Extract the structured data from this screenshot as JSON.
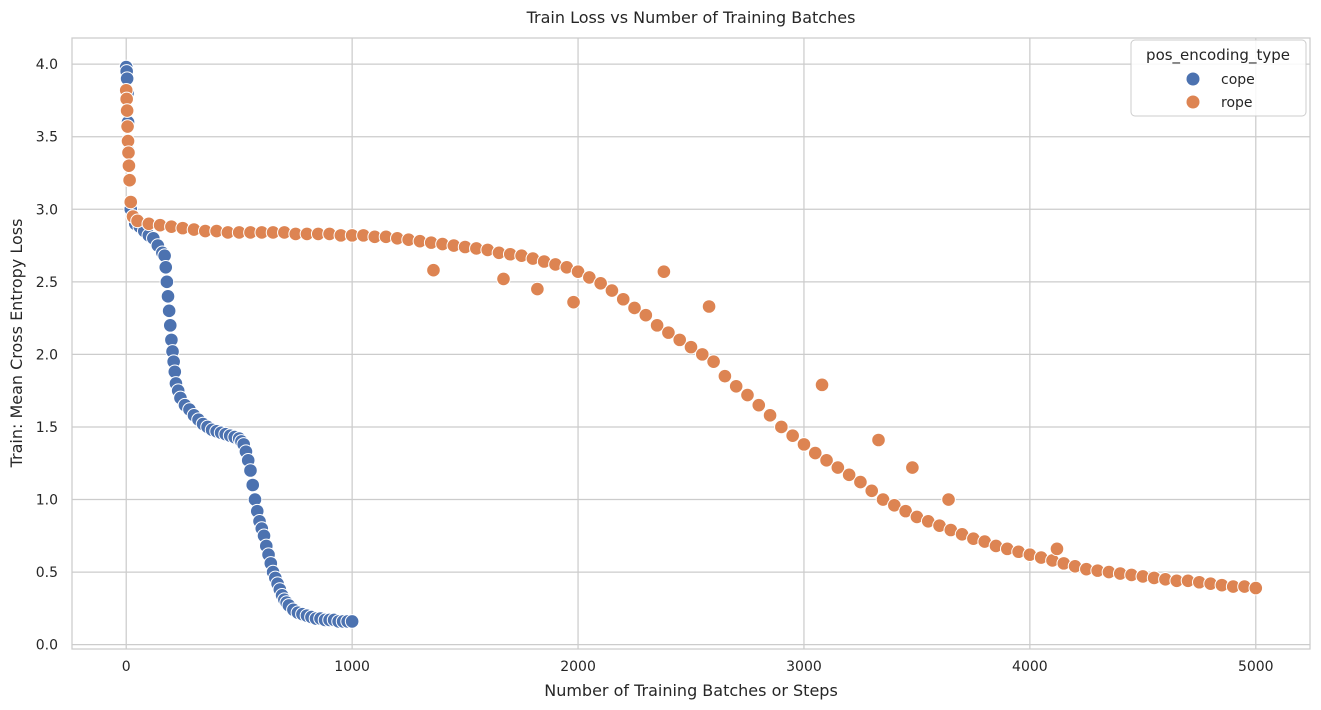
{
  "chart_data": {
    "type": "scatter",
    "title": "Train Loss vs Number of Training Batches",
    "xlabel": "Number of Training Batches or Steps",
    "ylabel": "Train: Mean Cross Entropy Loss",
    "xlim": [
      -240,
      5240
    ],
    "ylim": [
      -0.03,
      4.18
    ],
    "xticks": [
      0,
      1000,
      2000,
      3000,
      4000,
      5000
    ],
    "yticks": [
      0.0,
      0.5,
      1.0,
      1.5,
      2.0,
      2.5,
      3.0,
      3.5,
      4.0
    ],
    "grid": true,
    "style": "whitegrid",
    "legend": {
      "title": "pos_encoding_type",
      "placement": "top-right"
    },
    "series": [
      {
        "name": "cope",
        "color": "#4c72b0",
        "x": [
          0,
          2,
          4,
          6,
          8,
          10,
          15,
          20,
          30,
          40,
          60,
          80,
          100,
          120,
          140,
          160,
          170,
          175,
          180,
          185,
          190,
          195,
          200,
          205,
          210,
          215,
          220,
          230,
          240,
          260,
          280,
          300,
          320,
          340,
          360,
          380,
          400,
          420,
          440,
          460,
          480,
          500,
          510,
          520,
          530,
          540,
          550,
          560,
          570,
          580,
          590,
          600,
          610,
          620,
          630,
          640,
          650,
          660,
          670,
          680,
          690,
          700,
          710,
          720,
          740,
          760,
          780,
          800,
          820,
          840,
          860,
          880,
          900,
          920,
          940,
          960,
          980,
          1000
        ],
        "y": [
          3.98,
          3.95,
          3.9,
          3.8,
          3.6,
          3.4,
          3.2,
          3.0,
          2.95,
          2.9,
          2.88,
          2.85,
          2.82,
          2.8,
          2.75,
          2.7,
          2.68,
          2.6,
          2.5,
          2.4,
          2.3,
          2.2,
          2.1,
          2.02,
          1.95,
          1.88,
          1.8,
          1.75,
          1.7,
          1.65,
          1.62,
          1.58,
          1.55,
          1.52,
          1.5,
          1.48,
          1.47,
          1.46,
          1.45,
          1.44,
          1.43,
          1.42,
          1.4,
          1.38,
          1.33,
          1.27,
          1.2,
          1.1,
          1.0,
          0.92,
          0.85,
          0.8,
          0.75,
          0.68,
          0.62,
          0.56,
          0.5,
          0.46,
          0.42,
          0.38,
          0.34,
          0.31,
          0.29,
          0.27,
          0.24,
          0.22,
          0.21,
          0.2,
          0.19,
          0.18,
          0.18,
          0.17,
          0.17,
          0.17,
          0.16,
          0.16,
          0.16,
          0.16
        ]
      },
      {
        "name": "rope",
        "color": "#dd8452",
        "x": [
          0,
          2,
          4,
          6,
          8,
          10,
          12,
          15,
          20,
          30,
          50,
          100,
          150,
          200,
          250,
          300,
          350,
          400,
          450,
          500,
          550,
          600,
          650,
          700,
          750,
          800,
          850,
          900,
          950,
          1000,
          1050,
          1100,
          1150,
          1200,
          1250,
          1300,
          1350,
          1360,
          1400,
          1450,
          1500,
          1550,
          1600,
          1650,
          1670,
          1700,
          1750,
          1800,
          1820,
          1850,
          1900,
          1950,
          1980,
          2000,
          2050,
          2100,
          2150,
          2200,
          2250,
          2300,
          2350,
          2380,
          2400,
          2450,
          2500,
          2550,
          2580,
          2600,
          2650,
          2700,
          2750,
          2800,
          2850,
          2900,
          2950,
          3000,
          3050,
          3080,
          3100,
          3150,
          3200,
          3250,
          3300,
          3330,
          3350,
          3400,
          3450,
          3480,
          3500,
          3550,
          3600,
          3640,
          3650,
          3700,
          3750,
          3800,
          3850,
          3900,
          3950,
          4000,
          4050,
          4100,
          4120,
          4150,
          4200,
          4250,
          4300,
          4350,
          4400,
          4450,
          4500,
          4550,
          4600,
          4650,
          4700,
          4750,
          4800,
          4850,
          4900,
          4950,
          5000
        ],
        "y": [
          3.82,
          3.76,
          3.68,
          3.57,
          3.47,
          3.39,
          3.3,
          3.2,
          3.05,
          2.95,
          2.92,
          2.9,
          2.89,
          2.88,
          2.87,
          2.86,
          2.85,
          2.85,
          2.84,
          2.84,
          2.84,
          2.84,
          2.84,
          2.84,
          2.83,
          2.83,
          2.83,
          2.83,
          2.82,
          2.82,
          2.82,
          2.81,
          2.81,
          2.8,
          2.79,
          2.78,
          2.77,
          2.58,
          2.76,
          2.75,
          2.74,
          2.73,
          2.72,
          2.7,
          2.52,
          2.69,
          2.68,
          2.66,
          2.45,
          2.64,
          2.62,
          2.6,
          2.36,
          2.57,
          2.53,
          2.49,
          2.44,
          2.38,
          2.32,
          2.27,
          2.2,
          2.57,
          2.15,
          2.1,
          2.05,
          2.0,
          2.33,
          1.95,
          1.85,
          1.78,
          1.72,
          1.65,
          1.58,
          1.5,
          1.44,
          1.38,
          1.32,
          1.79,
          1.27,
          1.22,
          1.17,
          1.12,
          1.06,
          1.41,
          1.0,
          0.96,
          0.92,
          1.22,
          0.88,
          0.85,
          0.82,
          1.0,
          0.79,
          0.76,
          0.73,
          0.71,
          0.68,
          0.66,
          0.64,
          0.62,
          0.6,
          0.58,
          0.66,
          0.56,
          0.54,
          0.52,
          0.51,
          0.5,
          0.49,
          0.48,
          0.47,
          0.46,
          0.45,
          0.44,
          0.44,
          0.43,
          0.42,
          0.41,
          0.4,
          0.4,
          0.39
        ]
      }
    ]
  }
}
